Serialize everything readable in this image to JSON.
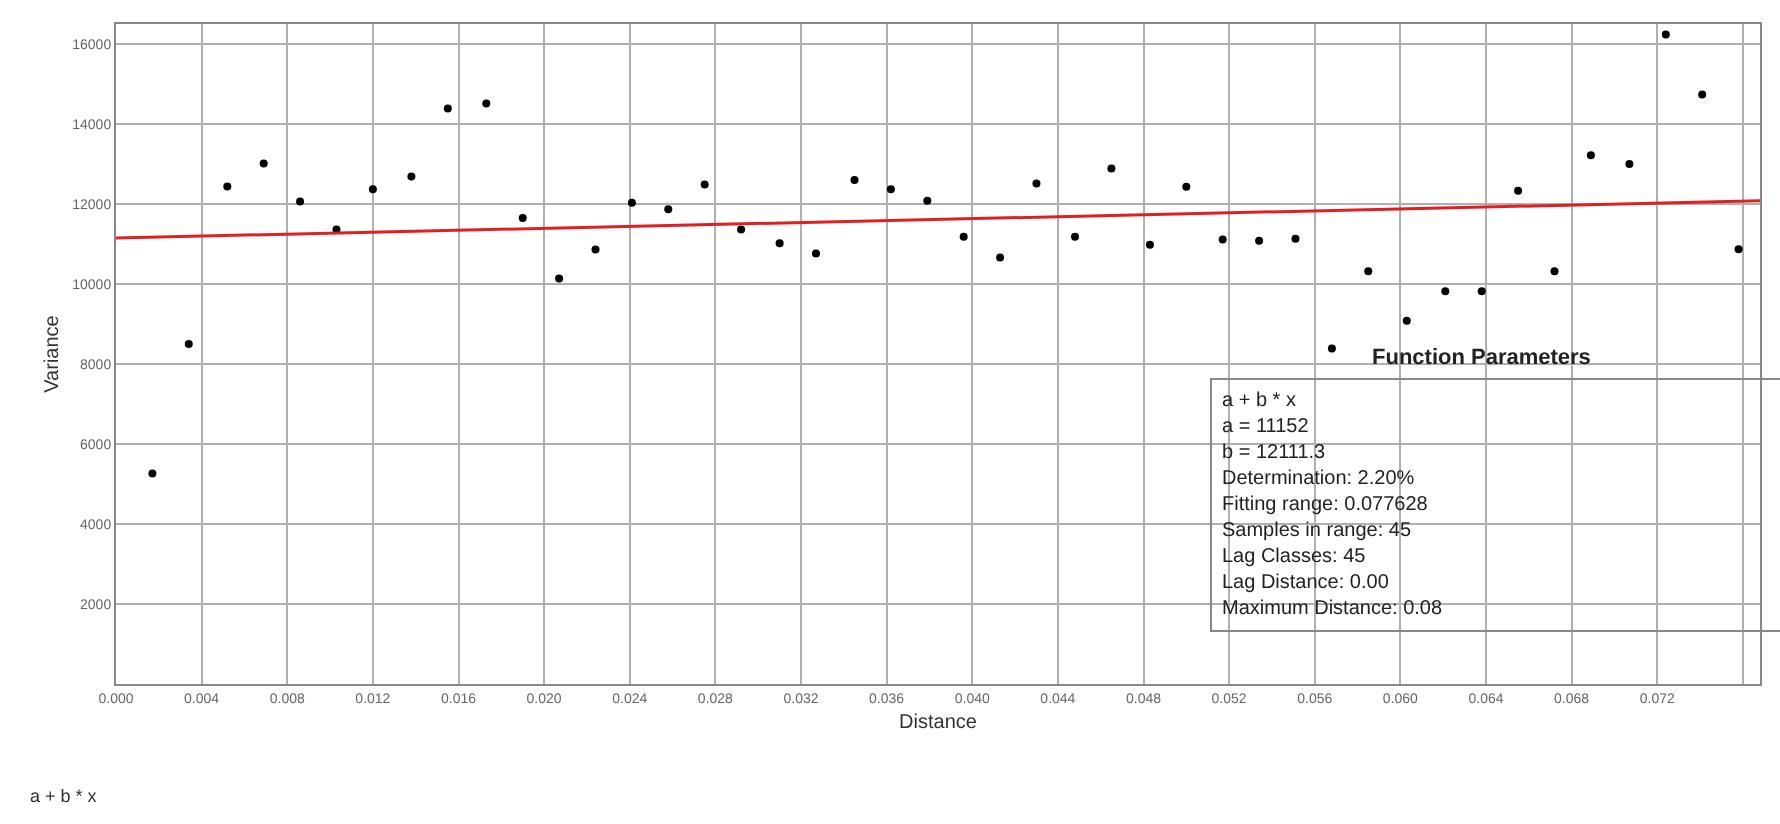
{
  "chart_data": {
    "type": "scatter",
    "xlabel": "Distance",
    "ylabel": "Variance",
    "xlim": [
      0,
      0.0768
    ],
    "ylim": [
      0,
      16500
    ],
    "xticks": [
      {
        "value": 0,
        "label": "0.000"
      },
      {
        "value": 0.004,
        "label": "0.004"
      },
      {
        "value": 0.008,
        "label": "0.008"
      },
      {
        "value": 0.012,
        "label": "0.012"
      },
      {
        "value": 0.016,
        "label": "0.016"
      },
      {
        "value": 0.02,
        "label": "0.020"
      },
      {
        "value": 0.024,
        "label": "0.024"
      },
      {
        "value": 0.028,
        "label": "0.028"
      },
      {
        "value": 0.032,
        "label": "0.032"
      },
      {
        "value": 0.036,
        "label": "0.036"
      },
      {
        "value": 0.04,
        "label": "0.040"
      },
      {
        "value": 0.044,
        "label": "0.044"
      },
      {
        "value": 0.048,
        "label": "0.048"
      },
      {
        "value": 0.052,
        "label": "0.052"
      },
      {
        "value": 0.056,
        "label": "0.056"
      },
      {
        "value": 0.06,
        "label": "0.060"
      },
      {
        "value": 0.064,
        "label": "0.064"
      },
      {
        "value": 0.068,
        "label": "0.068"
      },
      {
        "value": 0.072,
        "label": "0.072"
      },
      {
        "value": 0.076,
        "label": null
      }
    ],
    "yticks": [
      2000,
      4000,
      6000,
      8000,
      10000,
      12000,
      14000,
      16000
    ],
    "grid": true,
    "marker": "circle",
    "series": [
      {
        "color": "#000000",
        "x": [
          0.0017,
          0.0034,
          0.0052,
          0.0069,
          0.0086,
          0.0103,
          0.012,
          0.0138,
          0.0155,
          0.0173,
          0.019,
          0.0207,
          0.0224,
          0.0241,
          0.0258,
          0.0275,
          0.0292,
          0.031,
          0.0327,
          0.0345,
          0.0362,
          0.0379,
          0.0396,
          0.0413,
          0.043,
          0.0448,
          0.0465,
          0.0483,
          0.05,
          0.0517,
          0.0534,
          0.0551,
          0.0568,
          0.0585,
          0.0603,
          0.0621,
          0.0638,
          0.0655,
          0.0672,
          0.0689,
          0.0707,
          0.0724,
          0.0741,
          0.0758
        ],
        "values": [
          5260,
          8500,
          12440,
          13010,
          12060,
          11360,
          12370,
          12690,
          14390,
          14510,
          11650,
          10140,
          10860,
          12030,
          11870,
          12490,
          11360,
          11020,
          10760,
          12600,
          12370,
          12080,
          11180,
          10660,
          12510,
          11180,
          12890,
          10980,
          12430,
          11110,
          11080,
          11130,
          8390,
          10320,
          9080,
          9820,
          9820,
          12330,
          10320,
          13220,
          13000,
          16240,
          14740,
          10870
        ]
      },
      {
        "type": "line",
        "color": "#e02020",
        "line_style": "solid",
        "marker": "none",
        "x": [
          0,
          0.0768
        ],
        "values": [
          11150,
          12080
        ]
      }
    ],
    "annotations": [
      "Function Parameters",
      "a + b * x",
      "a = 11152",
      "b = 12111.3",
      "Determination: 2.20%",
      "Fitting range: 0.077628",
      "Samples in range: 45",
      "Lag Classes: 45",
      "Lag Distance: 0.00",
      "Maximum Distance: 0.08",
      "a + b * x"
    ]
  }
}
